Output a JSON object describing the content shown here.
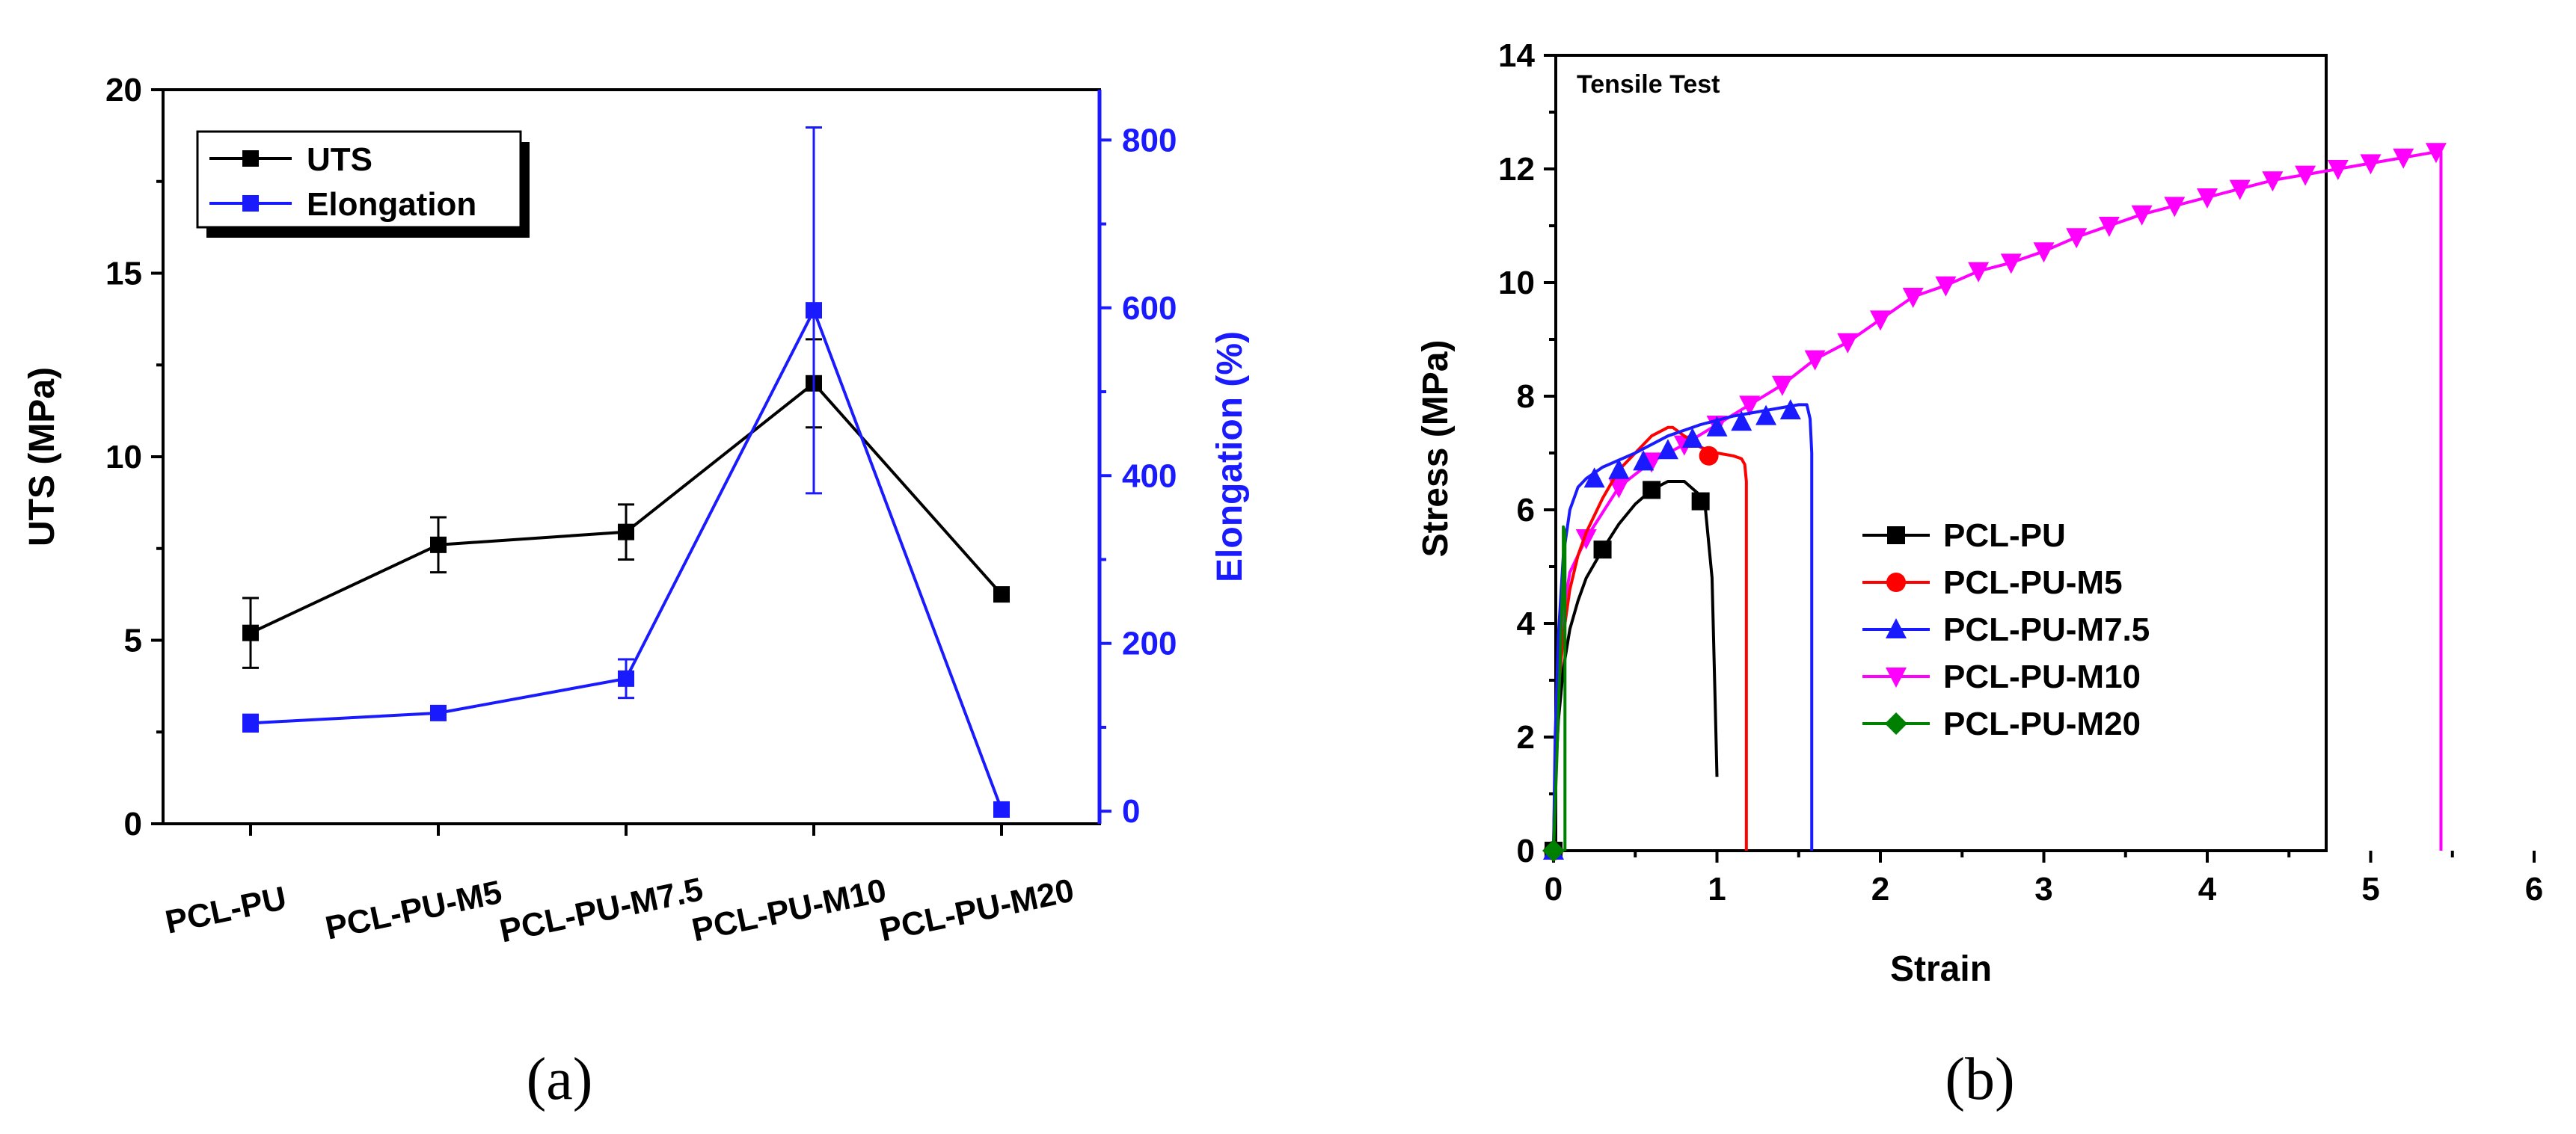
{
  "chart_data": [
    {
      "type": "line",
      "caption": "(a)",
      "categories": [
        "PCL-PU",
        "PCL-PU-M5",
        "PCL-PU-M7.5",
        "PCL-PU-M10",
        "PCL-PU-M20"
      ],
      "ylabel": "UTS (MPa)",
      "ylabel_right": "Elongation (%)",
      "ylim": [
        0,
        20
      ],
      "ylim_right": [
        -15,
        860
      ],
      "yticks": [
        0,
        5,
        10,
        15,
        20
      ],
      "yticks_right": [
        0,
        200,
        400,
        600,
        800
      ],
      "legend_position": "top-left",
      "series": [
        {
          "name": "UTS",
          "axis": "left",
          "color": "#000000",
          "values": [
            5.2,
            7.6,
            7.95,
            12.0,
            6.25
          ],
          "errors": [
            0.95,
            0.75,
            0.75,
            1.2,
            0.1
          ]
        },
        {
          "name": "Elongation",
          "axis": "right",
          "color": "#1a1aff",
          "values": [
            105,
            117,
            158,
            597,
            2
          ],
          "errors": [
            10,
            5,
            23,
            218,
            4
          ]
        }
      ]
    },
    {
      "type": "line",
      "caption": "(b)",
      "title": "Tensile Test",
      "xlabel": "Strain",
      "ylabel": "Stress (MPa)",
      "xlim": [
        -0.1,
        6
      ],
      "ylim": [
        0,
        14
      ],
      "xticks": [
        0,
        1,
        2,
        3,
        4,
        5,
        6
      ],
      "yticks": [
        0,
        2,
        4,
        6,
        8,
        10,
        12,
        14
      ],
      "legend_position": "center-right",
      "series": [
        {
          "name": "PCL-PU",
          "color": "#000000",
          "marker": "square",
          "x": [
            0,
            0.01,
            0.03,
            0.06,
            0.1,
            0.15,
            0.2,
            0.3,
            0.4,
            0.5,
            0.6,
            0.7,
            0.8,
            0.88,
            0.93,
            0.97,
            0.99,
            1.0
          ],
          "y": [
            0,
            1.2,
            2.3,
            3.2,
            3.9,
            4.4,
            4.8,
            5.3,
            5.75,
            6.1,
            6.35,
            6.5,
            6.5,
            6.3,
            6.0,
            4.8,
            2.5,
            1.3
          ],
          "markers_x": [
            0,
            0.3,
            0.6,
            0.9
          ],
          "markers_y": [
            0,
            5.3,
            6.35,
            6.15
          ]
        },
        {
          "name": "PCL-PU-M5",
          "color": "#ff0000",
          "marker": "circle",
          "x": [
            0,
            0.01,
            0.03,
            0.06,
            0.1,
            0.15,
            0.2,
            0.3,
            0.4,
            0.5,
            0.6,
            0.7,
            0.73,
            0.8,
            0.9,
            1.0,
            1.1,
            1.15,
            1.17,
            1.18,
            1.18
          ],
          "y": [
            0,
            1.5,
            2.8,
            3.8,
            4.6,
            5.2,
            5.6,
            6.2,
            6.7,
            7.0,
            7.3,
            7.45,
            7.45,
            7.3,
            7.1,
            7.0,
            6.95,
            6.9,
            6.8,
            6.5,
            0
          ],
          "markers_x": [
            0,
            0.95
          ],
          "markers_y": [
            0,
            6.95
          ]
        },
        {
          "name": "PCL-PU-M7.5",
          "color": "#1a1aff",
          "marker": "triangle-up",
          "x": [
            0,
            0.01,
            0.03,
            0.06,
            0.1,
            0.15,
            0.2,
            0.3,
            0.5,
            0.7,
            0.9,
            1.1,
            1.3,
            1.5,
            1.55,
            1.57,
            1.58,
            1.58
          ],
          "y": [
            0,
            2.0,
            3.8,
            5.2,
            6.0,
            6.4,
            6.55,
            6.75,
            7.0,
            7.3,
            7.5,
            7.65,
            7.75,
            7.85,
            7.85,
            7.6,
            7.0,
            0
          ],
          "markers_x": [
            0,
            0.25,
            0.4,
            0.55,
            0.7,
            0.85,
            1.0,
            1.15,
            1.3,
            1.45
          ],
          "markers_y": [
            0,
            6.55,
            6.7,
            6.85,
            7.05,
            7.25,
            7.45,
            7.55,
            7.65,
            7.75
          ]
        },
        {
          "name": "PCL-PU-M10",
          "color": "#ff00ff",
          "marker": "triangle-down",
          "x": [
            0,
            0.01,
            0.03,
            0.06,
            0.1,
            0.2,
            0.4,
            0.6,
            0.8,
            1.0,
            1.2,
            1.4,
            1.6,
            1.8,
            2.0,
            2.2,
            2.4,
            2.6,
            2.8,
            3.0,
            3.2,
            3.4,
            3.6,
            3.8,
            4.0,
            4.2,
            4.4,
            4.6,
            4.8,
            5.0,
            5.2,
            5.4,
            5.43,
            5.43
          ],
          "y": [
            0,
            1.5,
            3.0,
            4.2,
            4.9,
            5.5,
            6.4,
            6.85,
            7.15,
            7.5,
            7.85,
            8.2,
            8.65,
            8.95,
            9.35,
            9.75,
            9.95,
            10.2,
            10.35,
            10.55,
            10.8,
            11.0,
            11.2,
            11.35,
            11.5,
            11.65,
            11.8,
            11.9,
            12.0,
            12.1,
            12.2,
            12.3,
            12.3,
            0
          ],
          "markers_x": [
            0.2,
            0.4,
            0.6,
            0.8,
            1.0,
            1.2,
            1.4,
            1.6,
            1.8,
            2.0,
            2.2,
            2.4,
            2.6,
            2.8,
            3.0,
            3.2,
            3.4,
            3.6,
            3.8,
            4.0,
            4.2,
            4.4,
            4.6,
            4.8,
            5.0,
            5.2,
            5.4
          ],
          "markers_y": [
            5.5,
            6.4,
            6.85,
            7.15,
            7.5,
            7.85,
            8.2,
            8.65,
            8.95,
            9.35,
            9.75,
            9.95,
            10.2,
            10.35,
            10.55,
            10.8,
            11.0,
            11.2,
            11.35,
            11.5,
            11.65,
            11.8,
            11.9,
            12.0,
            12.1,
            12.2,
            12.3
          ]
        },
        {
          "name": "PCL-PU-M20",
          "color": "#008000",
          "marker": "diamond",
          "x": [
            0,
            0.01,
            0.02,
            0.03,
            0.04,
            0.05,
            0.06,
            0.06,
            0.07,
            0.07
          ],
          "y": [
            0,
            0.8,
            1.6,
            2.5,
            3.3,
            4.2,
            5.0,
            5.7,
            5.6,
            0
          ],
          "markers_x": [
            0
          ],
          "markers_y": [
            0
          ]
        }
      ]
    }
  ]
}
